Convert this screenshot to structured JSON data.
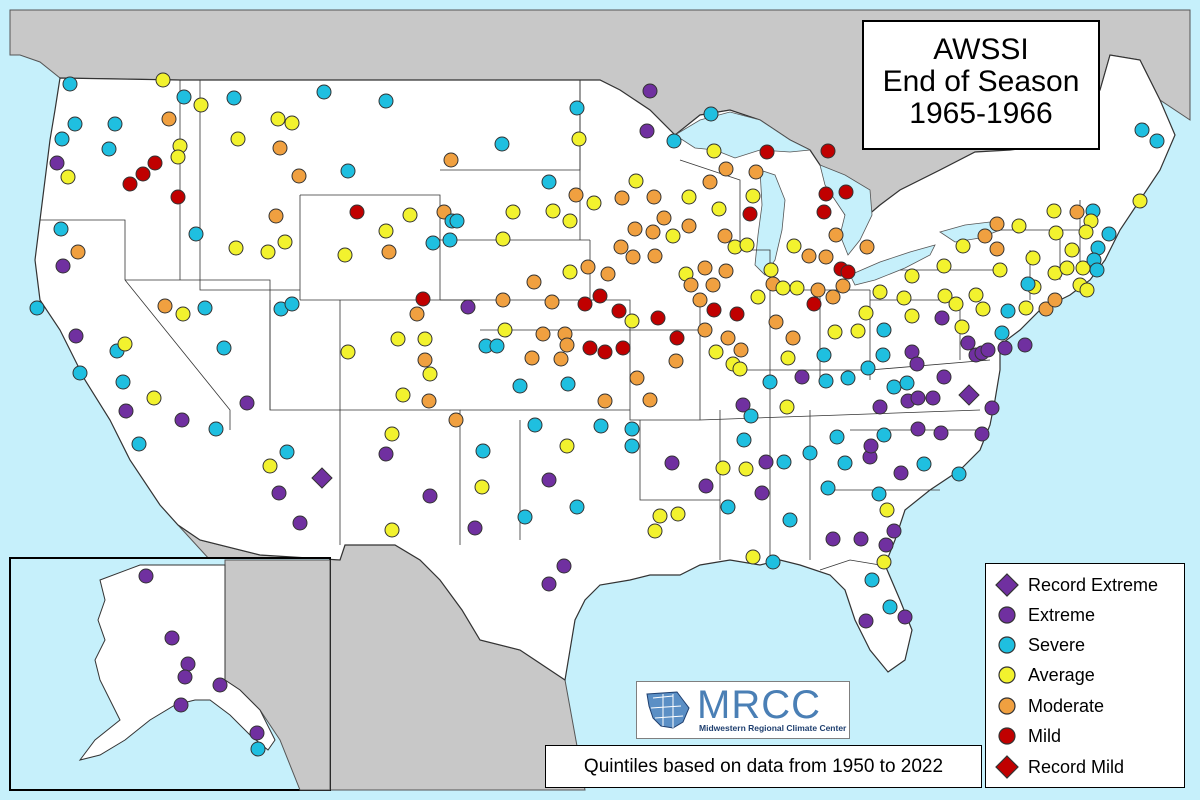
{
  "title": {
    "line1": "AWSSI",
    "line2": "End of Season",
    "line3": "1965-1966"
  },
  "legend": {
    "items": [
      {
        "label": "Record Extreme",
        "shape": "diamond",
        "color": "#7030a0"
      },
      {
        "label": "Extreme",
        "shape": "circle",
        "color": "#7030a0"
      },
      {
        "label": "Severe",
        "shape": "circle",
        "color": "#1fbfe0"
      },
      {
        "label": "Average",
        "shape": "circle",
        "color": "#f2f22e"
      },
      {
        "label": "Moderate",
        "shape": "circle",
        "color": "#f0a040"
      },
      {
        "label": "Mild",
        "shape": "circle",
        "color": "#c00000"
      },
      {
        "label": "Record Mild",
        "shape": "diamond",
        "color": "#c00000"
      }
    ]
  },
  "note": "Quintiles based on data from 1950 to 2022",
  "logo": {
    "main": "MRCC",
    "sub": "Midwestern Regional Climate Center"
  },
  "colors": {
    "ocean": "#c6f0fb",
    "neighbor_land": "#c8c8c8",
    "us_land": "#ffffff"
  }
}
